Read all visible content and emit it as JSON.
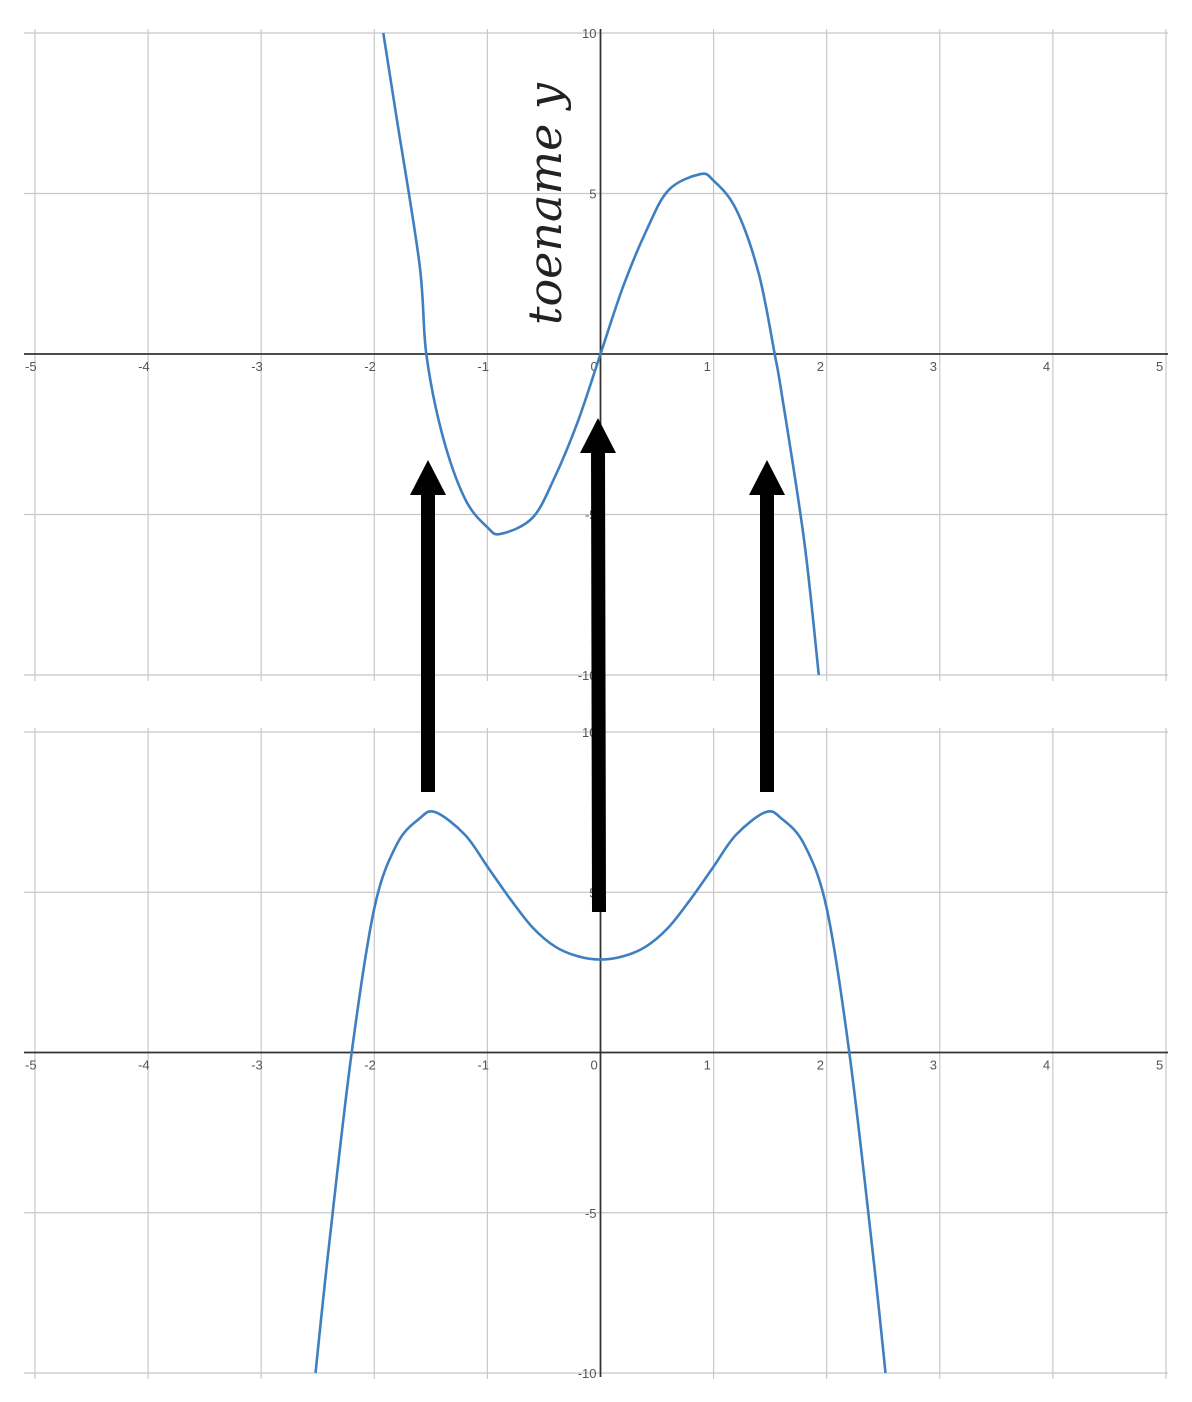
{
  "annotation": "toename y",
  "chart_data": [
    {
      "type": "line",
      "title": "",
      "xlabel": "",
      "ylabel": "",
      "xlim": [
        -5,
        5
      ],
      "ylim": [
        -10,
        10
      ],
      "grid": true,
      "x_ticks": [
        "-5",
        "-4",
        "-3",
        "-2",
        "-1",
        "0",
        "1",
        "2",
        "3",
        "4",
        "5"
      ],
      "y_ticks": [
        "10",
        "5",
        "-5",
        "-10"
      ],
      "series": [
        {
          "color": "#3f7fbf",
          "x": [
            -1.92,
            -1.8,
            -1.6,
            -1.54,
            -1.4,
            -1.2,
            -1.0,
            -0.88,
            -0.6,
            -0.4,
            -0.2,
            0,
            0.2,
            0.4,
            0.6,
            0.88,
            1.0,
            1.2,
            1.4,
            1.54,
            1.6,
            1.8,
            1.93
          ],
          "y": [
            10.0,
            7.3,
            2.8,
            0.0,
            -2.5,
            -4.5,
            -5.4,
            -5.6,
            -5.1,
            -3.8,
            -2.1,
            0.0,
            2.1,
            3.8,
            5.1,
            5.6,
            5.4,
            4.5,
            2.5,
            0.0,
            -1.2,
            -5.8,
            -10.0
          ]
        }
      ]
    },
    {
      "type": "line",
      "title": "",
      "xlabel": "",
      "ylabel": "",
      "xlim": [
        -5,
        5
      ],
      "ylim": [
        -10,
        10
      ],
      "grid": true,
      "x_ticks": [
        "-5",
        "-4",
        "-3",
        "-2",
        "-1",
        "0",
        "1",
        "2",
        "3",
        "4",
        "5"
      ],
      "y_ticks": [
        "10",
        "5",
        "-5",
        "-10"
      ],
      "series": [
        {
          "color": "#3f7fbf",
          "x": [
            -2.52,
            -2.4,
            -2.2,
            -2.0,
            -1.8,
            -1.6,
            -1.46,
            -1.2,
            -1.0,
            -0.8,
            -0.6,
            -0.4,
            -0.2,
            0,
            0.2,
            0.4,
            0.6,
            0.8,
            1.0,
            1.2,
            1.46,
            1.6,
            1.8,
            2.0,
            2.2,
            2.4,
            2.52
          ],
          "y": [
            -10.0,
            -6.0,
            0.0,
            4.5,
            6.5,
            7.3,
            7.5,
            6.8,
            5.8,
            4.8,
            3.9,
            3.3,
            3.0,
            2.9,
            3.0,
            3.3,
            3.9,
            4.8,
            5.8,
            6.8,
            7.5,
            7.3,
            6.5,
            4.5,
            0.0,
            -6.0,
            -10.0
          ]
        }
      ]
    }
  ]
}
